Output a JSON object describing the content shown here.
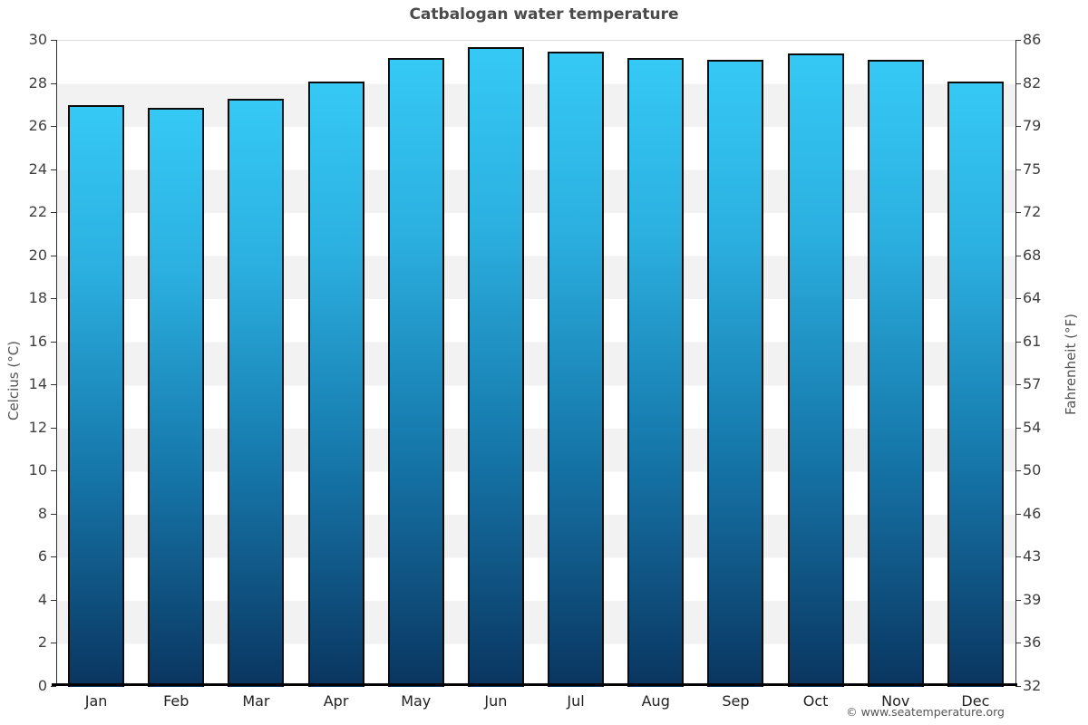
{
  "title": "Catbalogan water temperature",
  "footer": "© www.seatemperature.org",
  "chart_data": {
    "type": "bar",
    "title": "Catbalogan water temperature",
    "categories": [
      "Jan",
      "Feb",
      "Mar",
      "Apr",
      "May",
      "Jun",
      "Jul",
      "Aug",
      "Sep",
      "Oct",
      "Nov",
      "Dec"
    ],
    "series": [
      {
        "name": "Water temperature (°C)",
        "unit": "°C",
        "values": [
          27.0,
          26.9,
          27.3,
          28.1,
          29.2,
          29.7,
          29.5,
          29.2,
          29.1,
          29.4,
          29.1,
          28.1
        ]
      },
      {
        "name": "Water temperature (°F)",
        "unit": "°F",
        "values": [
          80.6,
          80.4,
          81.1,
          82.6,
          84.6,
          85.5,
          85.1,
          84.6,
          84.4,
          84.9,
          84.4,
          82.6
        ]
      }
    ],
    "ylabel_left": "Celcius (°C)",
    "ylabel_right": "Fahrenheit (°F)",
    "ylim_left": [
      0,
      30
    ],
    "ylim_right_labels": [
      32,
      86
    ],
    "yticks_left": [
      0,
      2,
      4,
      6,
      8,
      10,
      12,
      14,
      16,
      18,
      20,
      22,
      24,
      26,
      28,
      30
    ],
    "yticks_right": [
      "32",
      "36",
      "39",
      "43",
      "46",
      "50",
      "54",
      "57",
      "61",
      "64",
      "68",
      "72",
      "75",
      "79",
      "82",
      "86"
    ],
    "legend_position": "none",
    "grid": "alternating horizontal gray/white bands every 2°C",
    "colors": {
      "bar_top": "#36c9f5",
      "bar_bottom": "#0a3560",
      "bar_border": "#0c0c0c",
      "band_gray": "#f2f2f2",
      "band_white": "#ffffff",
      "top_grid_line": "#dcdcdc",
      "axis_line": "#333333",
      "bottom_axis_line": "#000000",
      "title_color": "#4a4a4a",
      "tick_label_color": "#404040",
      "axis_title_color": "#555555",
      "footer_color": "#555555"
    }
  }
}
